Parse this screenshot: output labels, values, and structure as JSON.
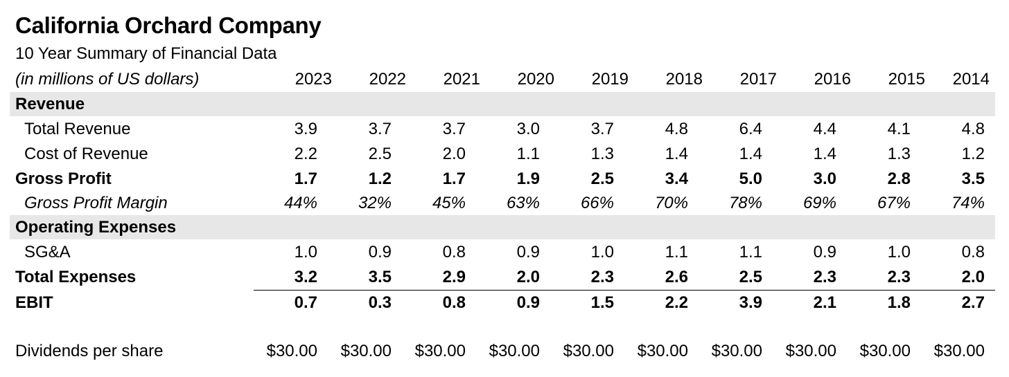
{
  "title": "California Orchard Company",
  "subtitle": "10 Year Summary of Financial Data",
  "units_label": "(in millions of US dollars)",
  "years": [
    "2023",
    "2022",
    "2021",
    "2020",
    "2019",
    "2018",
    "2017",
    "2016",
    "2015",
    "2014"
  ],
  "sections": {
    "revenue": "Revenue",
    "operating_expenses": "Operating Expenses"
  },
  "rows": {
    "total_revenue": {
      "label": "Total Revenue",
      "values": [
        "3.9",
        "3.7",
        "3.7",
        "3.0",
        "3.7",
        "4.8",
        "6.4",
        "4.4",
        "4.1",
        "4.8"
      ]
    },
    "cost_of_revenue": {
      "label": "Cost of Revenue",
      "values": [
        "2.2",
        "2.5",
        "2.0",
        "1.1",
        "1.3",
        "1.4",
        "1.4",
        "1.4",
        "1.3",
        "1.2"
      ]
    },
    "gross_profit": {
      "label": "Gross Profit",
      "values": [
        "1.7",
        "1.2",
        "1.7",
        "1.9",
        "2.5",
        "3.4",
        "5.0",
        "3.0",
        "2.8",
        "3.5"
      ]
    },
    "gross_profit_margin": {
      "label": "Gross Profit Margin",
      "values": [
        "44%",
        "32%",
        "45%",
        "63%",
        "66%",
        "70%",
        "78%",
        "69%",
        "67%",
        "74%"
      ]
    },
    "sga": {
      "label": "SG&A",
      "values": [
        "1.0",
        "0.9",
        "0.8",
        "0.9",
        "1.0",
        "1.1",
        "1.1",
        "0.9",
        "1.0",
        "0.8"
      ]
    },
    "total_expenses": {
      "label": "Total Expenses",
      "values": [
        "3.2",
        "3.5",
        "2.9",
        "2.0",
        "2.3",
        "2.6",
        "2.5",
        "2.3",
        "2.3",
        "2.0"
      ]
    },
    "ebit": {
      "label": "EBIT",
      "values": [
        "0.7",
        "0.3",
        "0.8",
        "0.9",
        "1.5",
        "2.2",
        "3.9",
        "2.1",
        "1.8",
        "2.7"
      ]
    },
    "dividends_per_share": {
      "label": "Dividends per share",
      "values": [
        "$30.00",
        "$30.00",
        "$30.00",
        "$30.00",
        "$30.00",
        "$30.00",
        "$30.00",
        "$30.00",
        "$30.00",
        "$30.00"
      ]
    }
  }
}
